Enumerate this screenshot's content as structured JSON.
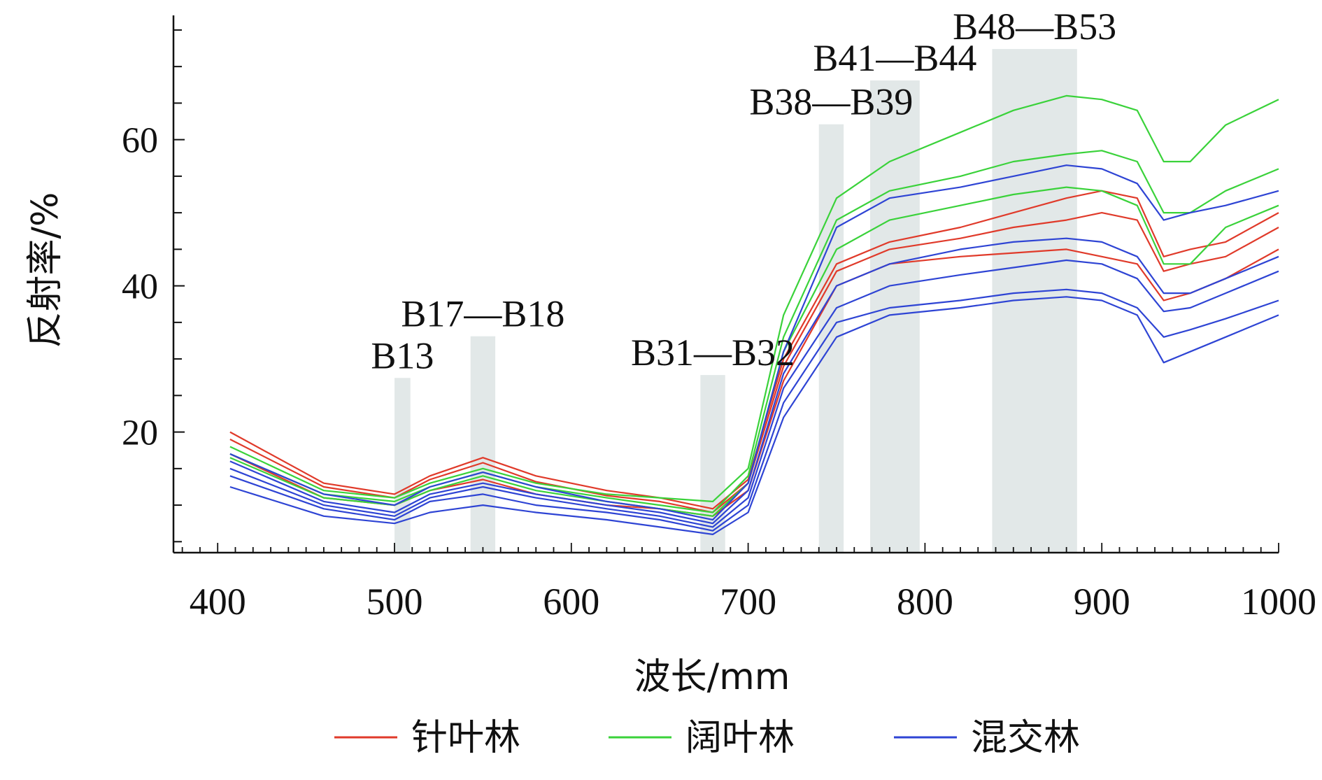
{
  "chart_data": {
    "type": "line",
    "xlabel": "波长/mm",
    "ylabel": "反射率/%",
    "xlim": [
      375,
      1000
    ],
    "ylim": [
      3.5,
      77
    ],
    "xticks": [
      400,
      500,
      600,
      700,
      800,
      900,
      1000
    ],
    "yticks": [
      20,
      40,
      60
    ],
    "grid": false,
    "legend_position": "bottom",
    "band_regions": [
      {
        "label": "B13",
        "x_start": 500,
        "x_end": 509,
        "top": 27.4
      },
      {
        "label": "B17—B18",
        "x_start": 543,
        "x_end": 557,
        "top": 33.1
      },
      {
        "label": "B31—B32",
        "x_start": 673,
        "x_end": 687,
        "top": 27.8
      },
      {
        "label": "B38—B39",
        "x_start": 740,
        "x_end": 754,
        "top": 62.1
      },
      {
        "label": "B41—B44",
        "x_start": 769,
        "x_end": 797,
        "top": 68.1
      },
      {
        "label": "B48—B53",
        "x_start": 838,
        "x_end": 886,
        "top": 72.4
      }
    ],
    "groups": [
      {
        "name": "针叶林",
        "color": "#e03a2a",
        "series": [
          {
            "x": [
              407,
              460,
              500,
              520,
              550,
              580,
              620,
              650,
              680,
              700,
              720,
              750,
              780,
              820,
              850,
              880,
              900,
              920,
              935,
              950,
              970,
              1000
            ],
            "y": [
              20,
              13,
              11.5,
              14,
              16.5,
              14,
              12,
              11,
              9.5,
              13.5,
              30,
              43,
              46,
              48,
              50,
              52,
              53,
              52,
              44,
              45,
              46,
              50
            ]
          },
          {
            "x": [
              407,
              460,
              500,
              520,
              550,
              580,
              620,
              650,
              680,
              700,
              720,
              750,
              780,
              820,
              850,
              880,
              900,
              920,
              935,
              950,
              970,
              1000
            ],
            "y": [
              19,
              12.5,
              11,
              13.5,
              15.8,
              13.2,
              11.3,
              10.5,
              9,
              13,
              29,
              42,
              45,
              46.5,
              48,
              49,
              50,
              49,
              42,
              43,
              44,
              48
            ]
          },
          {
            "x": [
              407,
              460,
              500,
              520,
              550,
              580,
              620,
              650,
              680,
              700,
              720,
              750,
              780,
              820,
              850,
              880,
              900,
              920,
              935,
              950,
              970,
              1000
            ],
            "y": [
              17,
              11,
              10,
              12,
              13.5,
              11.5,
              10,
              9.5,
              8.5,
              12,
              27,
              40,
              43,
              44,
              44.5,
              45,
              44,
              43,
              38,
              39,
              41,
              45
            ]
          }
        ]
      },
      {
        "name": "阔叶林",
        "color": "#3ad23a",
        "series": [
          {
            "x": [
              407,
              460,
              500,
              520,
              550,
              580,
              620,
              650,
              680,
              700,
              720,
              750,
              780,
              820,
              850,
              880,
              900,
              920,
              935,
              950,
              970,
              1000
            ],
            "y": [
              18,
              12,
              11,
              13,
              15,
              13,
              11.5,
              11,
              10.5,
              15,
              36,
              52,
              57,
              61,
              64,
              66,
              65.5,
              64,
              57,
              57,
              62,
              65.5
            ]
          },
          {
            "x": [
              407,
              460,
              500,
              520,
              550,
              580,
              620,
              650,
              680,
              700,
              720,
              750,
              780,
              820,
              850,
              880,
              900,
              920,
              935,
              950,
              970,
              1000
            ],
            "y": [
              17,
              11.5,
              10.5,
              12.5,
              14.5,
              12.5,
              11,
              10,
              9,
              14,
              33,
              49,
              53,
              55,
              57,
              58,
              58.5,
              57,
              50,
              50,
              53,
              56
            ]
          },
          {
            "x": [
              407,
              460,
              500,
              520,
              550,
              580,
              620,
              650,
              680,
              700,
              720,
              750,
              780,
              820,
              850,
              880,
              900,
              920,
              935,
              950,
              970,
              1000
            ],
            "y": [
              16.5,
              11,
              10,
              12,
              14,
              12,
              10.5,
              9.5,
              8.5,
              13,
              31,
              45,
              49,
              51,
              52.5,
              53.5,
              53,
              51,
              43,
              43,
              48,
              51
            ]
          }
        ]
      },
      {
        "name": "混交林",
        "color": "#2e44d4",
        "series": [
          {
            "x": [
              407,
              460,
              500,
              520,
              550,
              580,
              620,
              650,
              680,
              700,
              720,
              750,
              780,
              820,
              850,
              880,
              900,
              920,
              935,
              950,
              970,
              1000
            ],
            "y": [
              17,
              11.5,
              10,
              12.5,
              14.5,
              12.5,
              10.5,
              9.5,
              8,
              13,
              31,
              48,
              52,
              53.5,
              55,
              56.5,
              56,
              54,
              49,
              50,
              51,
              53
            ]
          },
          {
            "x": [
              407,
              460,
              500,
              520,
              550,
              580,
              620,
              650,
              680,
              700,
              720,
              750,
              780,
              820,
              850,
              880,
              900,
              920,
              935,
              950,
              970,
              1000
            ],
            "y": [
              16,
              10.5,
              9,
              11.5,
              13,
              11.5,
              10,
              9,
              7.5,
              12,
              28,
              40,
              43,
              45,
              46,
              46.5,
              46,
              44,
              39,
              39,
              41,
              44
            ]
          },
          {
            "x": [
              407,
              460,
              500,
              520,
              550,
              580,
              620,
              650,
              680,
              700,
              720,
              750,
              780,
              820,
              850,
              880,
              900,
              920,
              935,
              950,
              970,
              1000
            ],
            "y": [
              15,
              10,
              8.5,
              11,
              12.5,
              11,
              9.5,
              8.5,
              7,
              11,
              26,
              37,
              40,
              41.5,
              42.5,
              43.5,
              43,
              41,
              36.5,
              37,
              39,
              42
            ]
          },
          {
            "x": [
              407,
              460,
              500,
              520,
              550,
              580,
              620,
              650,
              680,
              700,
              720,
              750,
              780,
              820,
              850,
              880,
              900,
              920,
              935,
              950,
              970,
              1000
            ],
            "y": [
              14,
              9.5,
              8,
              10.5,
              11.5,
              10,
              9,
              8,
              6.5,
              10,
              24,
              35,
              37,
              38,
              39,
              39.5,
              39,
              37,
              33,
              34,
              35.5,
              38
            ]
          },
          {
            "x": [
              407,
              460,
              500,
              520,
              550,
              580,
              620,
              650,
              680,
              700,
              720,
              750,
              780,
              820,
              850,
              880,
              900,
              920,
              935,
              950,
              970,
              1000
            ],
            "y": [
              12.5,
              8.5,
              7.5,
              9,
              10,
              9,
              8,
              7,
              6,
              9,
              22,
              33,
              36,
              37,
              38,
              38.5,
              38,
              36,
              29.5,
              31,
              33,
              36
            ]
          }
        ]
      }
    ]
  }
}
